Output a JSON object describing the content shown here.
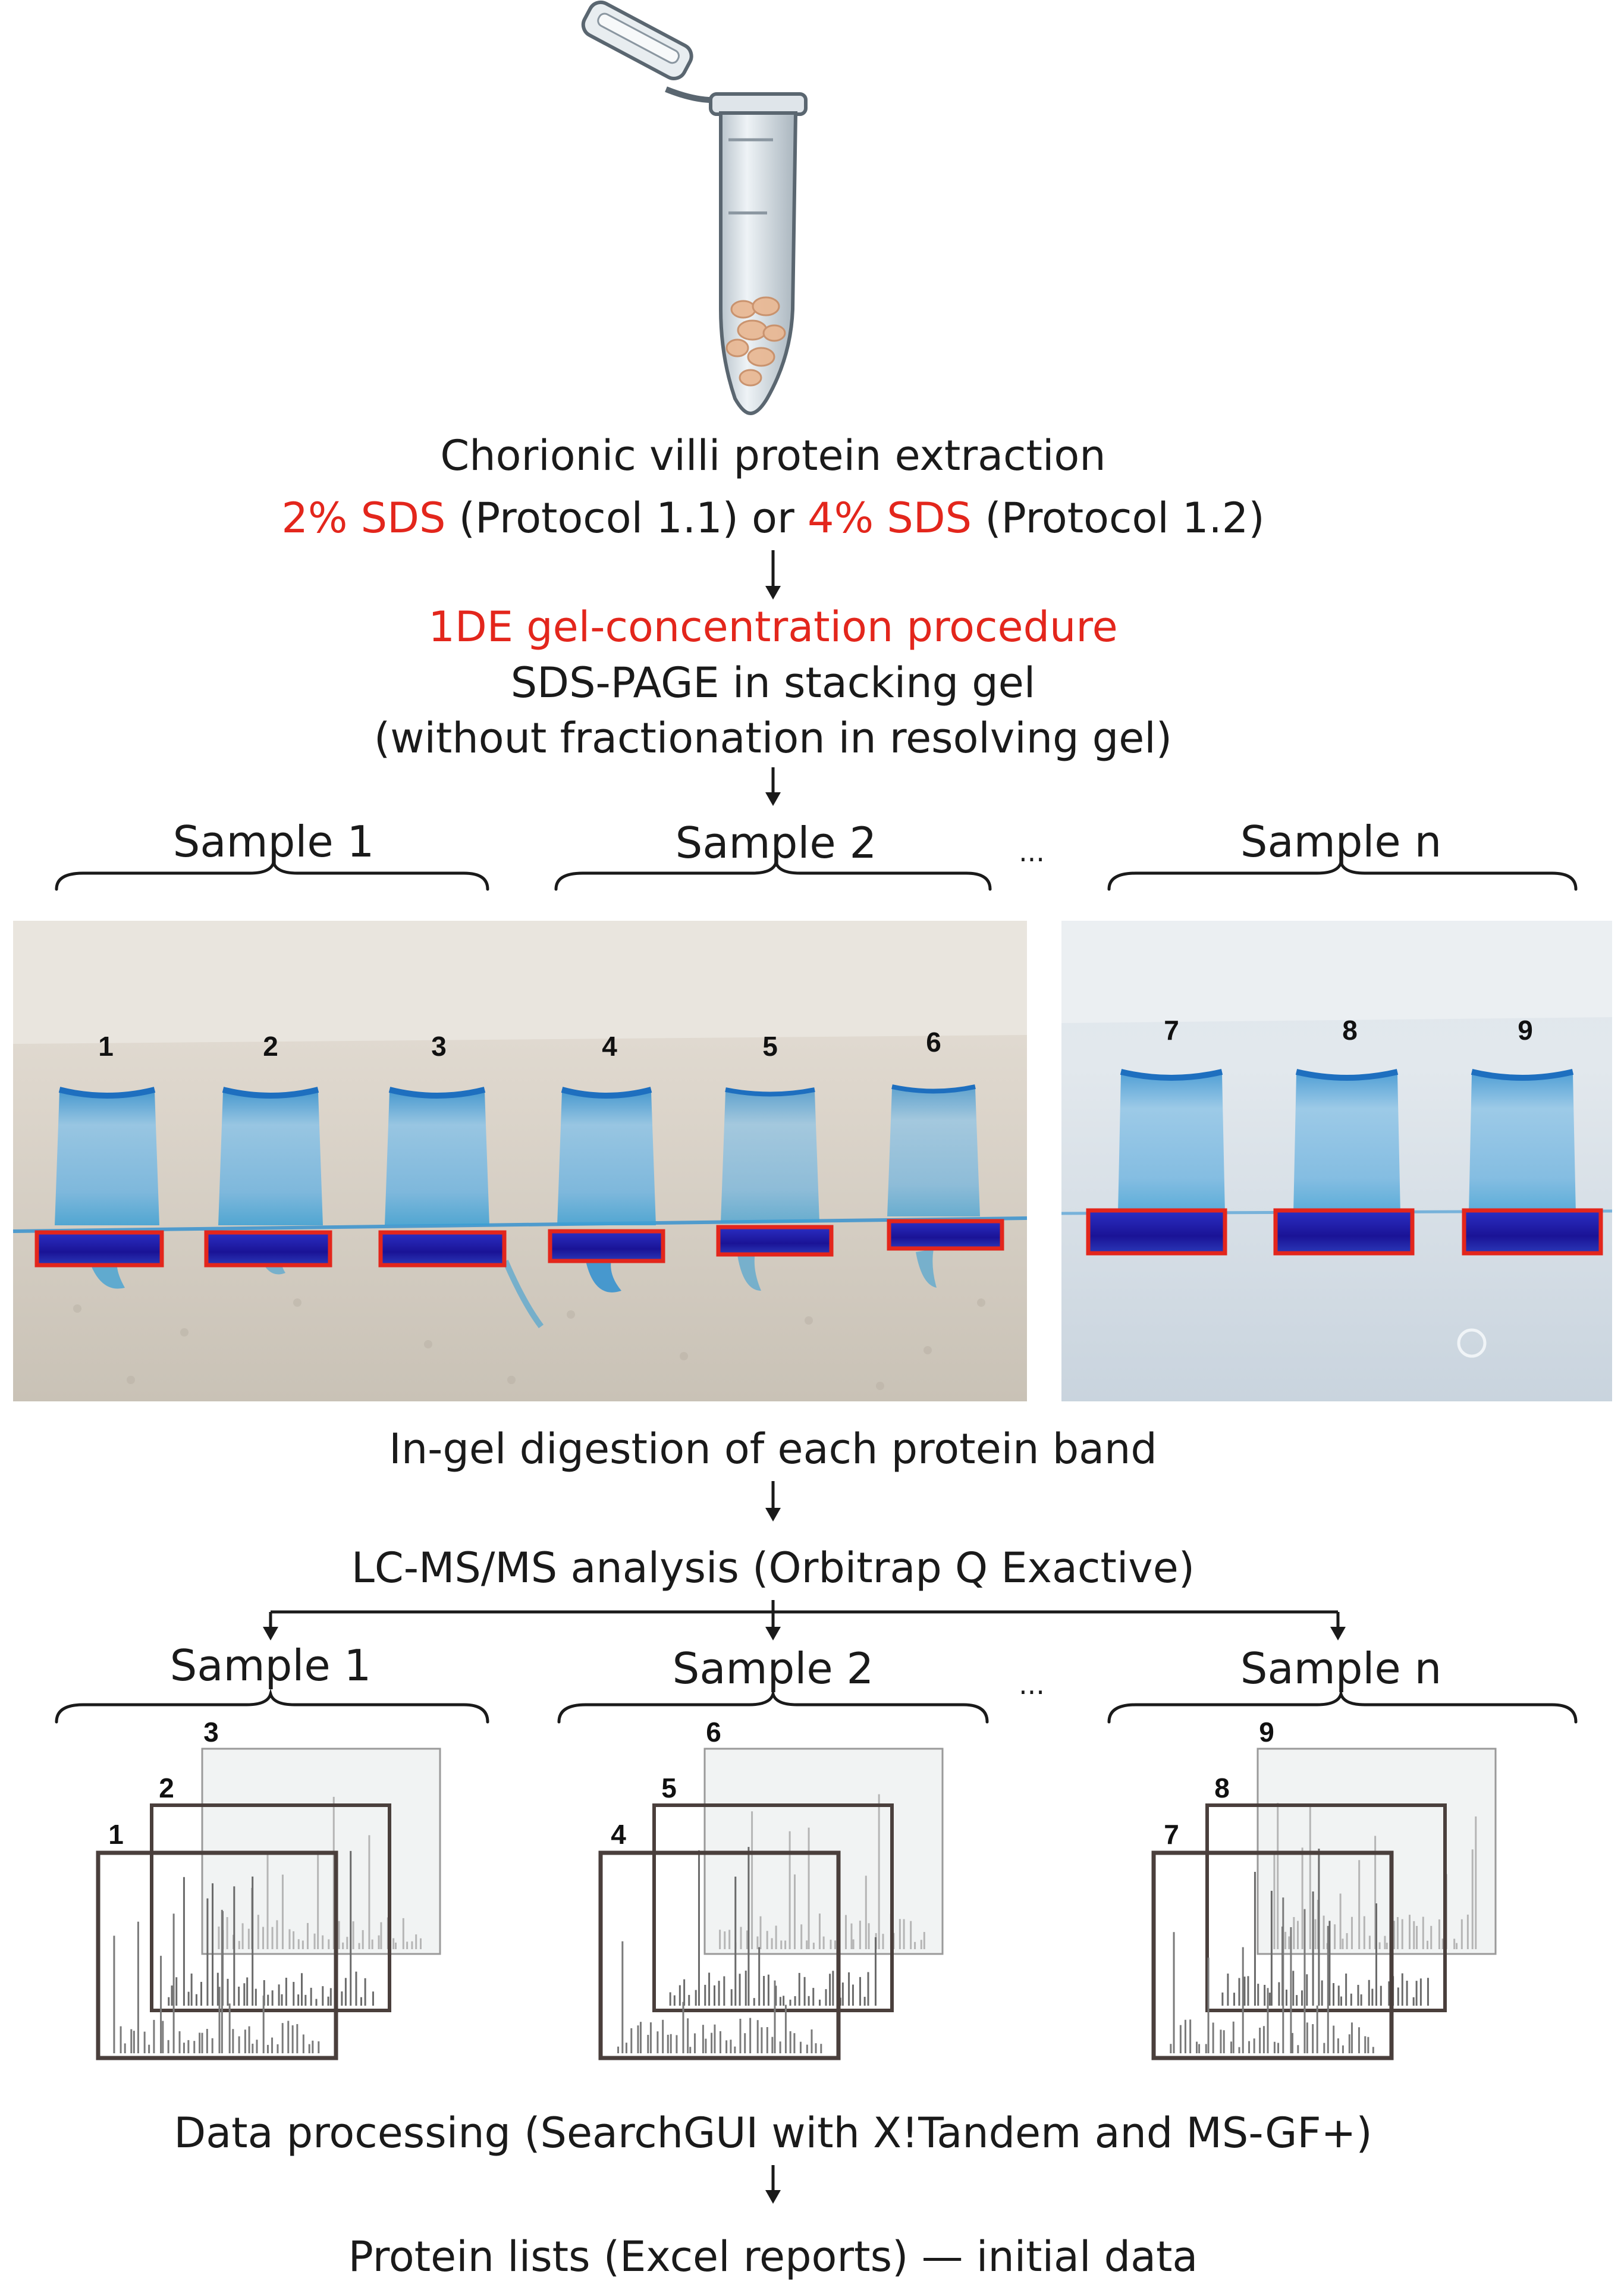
{
  "extraction": {
    "line1": "Chorionic villi protein extraction",
    "line2": {
      "p1_red": "2% SDS",
      "p1_black": " (Protocol 1.1) or ",
      "p2_red": "4% SDS",
      "p2_black": " (Protocol 1.2)"
    }
  },
  "concentration": {
    "title": "1DE gel-concentration procedure",
    "line2": "SDS-PAGE in stacking gel",
    "line3": "(without fractionation in resolving gel)"
  },
  "gel_samples": {
    "labels": [
      "Sample 1",
      "Sample 2",
      "Sample n"
    ],
    "ellipsis": "..."
  },
  "lanes": [
    "1",
    "2",
    "3",
    "4",
    "5",
    "6",
    "7",
    "8",
    "9"
  ],
  "colors": {
    "red_accent": "#e3261c",
    "gel_blue": "#3a9fd4",
    "band_blue": "#1f1aa8",
    "gel_bg": "#d9d2c6"
  },
  "digestion": "In-gel digestion of each protein band",
  "lcms": "LC-MS/MS analysis (Orbitrap Q Exactive)",
  "spectra_samples": {
    "labels": [
      "Sample 1",
      "Sample 2",
      "Sample n"
    ],
    "ellipsis": "..."
  },
  "processing": "Data processing (SearchGUI with X!Tandem and MS-GF+)",
  "result": "Protein lists (Excel reports) — initial data"
}
